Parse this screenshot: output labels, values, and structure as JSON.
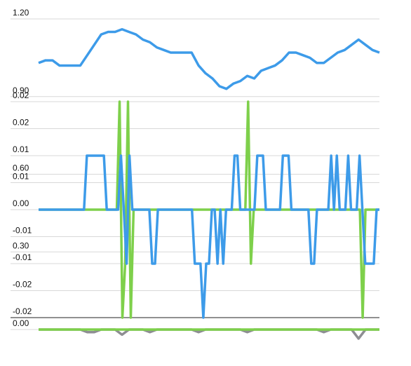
{
  "chart_data": [
    {
      "type": "line",
      "ylim": [
        0,
        1.2
      ],
      "yticks": [
        {
          "value": 1.2,
          "label": "1.20"
        },
        {
          "value": 0.9,
          "label": "0.90"
        },
        {
          "value": 0.6,
          "label": "0.60"
        },
        {
          "value": 0.3,
          "label": "0.30"
        },
        {
          "value": 0,
          "label": "0.00"
        }
      ],
      "grid": true,
      "series": [
        {
          "color": "#8e8e93",
          "values": [
            0,
            0,
            0,
            0,
            0,
            0,
            0,
            -0.01,
            -0.01,
            0,
            0,
            0,
            -0.02,
            0,
            0,
            0,
            -0.01,
            0,
            0,
            0,
            0,
            0,
            0,
            -0.01,
            0,
            0,
            0,
            0,
            0,
            0,
            -0.01,
            0,
            0,
            0,
            0,
            0,
            0,
            0,
            0,
            0,
            0,
            -0.01,
            0,
            0,
            0,
            0,
            -0.035,
            0,
            0,
            0
          ]
        },
        {
          "color": "#7ed04b",
          "values": [
            0,
            0,
            0,
            0,
            0,
            0,
            0,
            0,
            0,
            0,
            0,
            0,
            0,
            0,
            0,
            0,
            0,
            0,
            0,
            0,
            0,
            0,
            0,
            0,
            0,
            0,
            0,
            0,
            0,
            0,
            0,
            0,
            0,
            0,
            0,
            0,
            0,
            0,
            0,
            0,
            0,
            0,
            0,
            0,
            0,
            0,
            0,
            0,
            0,
            0
          ]
        },
        {
          "color": "#3d9be9",
          "values": [
            1.03,
            1.04,
            1.04,
            1.02,
            1.02,
            1.02,
            1.02,
            1.06,
            1.1,
            1.14,
            1.15,
            1.15,
            1.16,
            1.15,
            1.14,
            1.12,
            1.11,
            1.09,
            1.08,
            1.07,
            1.07,
            1.07,
            1.07,
            1.02,
            0.99,
            0.97,
            0.94,
            0.93,
            0.95,
            0.96,
            0.98,
            0.97,
            1.0,
            1.01,
            1.02,
            1.04,
            1.07,
            1.07,
            1.06,
            1.05,
            1.03,
            1.03,
            1.05,
            1.07,
            1.08,
            1.1,
            1.12,
            1.1,
            1.08,
            1.07
          ]
        }
      ]
    },
    {
      "type": "line",
      "ylim": [
        -0.02,
        0.02
      ],
      "yticks": [
        0.02,
        {
          "value": 0.015,
          "label": "0.02"
        },
        0.01,
        {
          "value": 0.005,
          "label": "0.01"
        },
        {
          "value": 0,
          "label": "0.00"
        },
        {
          "value": -0.005,
          "label": "-0.01"
        },
        -0.01,
        {
          "value": -0.015,
          "label": "-0.02"
        },
        -0.02
      ],
      "grid": true,
      "series": [
        {
          "color": "#7ed04b",
          "values": [
            0,
            0,
            0,
            0,
            0,
            0,
            0,
            0,
            0,
            0,
            0,
            0,
            0,
            0,
            0,
            0,
            0,
            0,
            0,
            0,
            0,
            0,
            0,
            0,
            0,
            0,
            0,
            0,
            0,
            0.02,
            -0.02,
            -0.01,
            0.02,
            -0.02,
            0,
            0,
            0,
            0,
            0,
            0,
            0,
            0,
            0,
            0,
            0,
            0,
            0,
            0,
            0,
            0,
            0,
            0,
            0,
            0,
            0,
            0,
            0,
            0,
            0,
            0,
            0,
            0,
            0,
            0,
            0,
            0,
            0,
            0,
            0,
            0,
            0,
            0,
            0,
            0,
            0,
            0.02,
            -0.01,
            0,
            0,
            0,
            0,
            0,
            0,
            0,
            0,
            0,
            0,
            0,
            0,
            0,
            0,
            0,
            0,
            0,
            0,
            0,
            0,
            0,
            0,
            0,
            0,
            0,
            0,
            0,
            0,
            0,
            0,
            0,
            0,
            0,
            0,
            0,
            0,
            0,
            0,
            0,
            -0.02,
            0,
            0,
            0,
            0,
            0,
            0
          ]
        },
        {
          "color": "#3d9be9",
          "values": [
            0,
            0,
            0,
            0,
            0,
            0,
            0,
            0,
            0,
            0,
            0,
            0,
            0,
            0,
            0,
            0,
            0,
            0.01,
            0.01,
            0.01,
            0.01,
            0.01,
            0.01,
            0.01,
            0,
            0,
            0,
            0,
            0,
            0.01,
            0,
            -0.01,
            0.01,
            0,
            0,
            0,
            0,
            0,
            0,
            0,
            -0.01,
            -0.01,
            0,
            0,
            0,
            0,
            0,
            0,
            0,
            0,
            0,
            0,
            0,
            0,
            0,
            -0.01,
            -0.01,
            -0.01,
            -0.02,
            -0.01,
            -0.01,
            0,
            0,
            -0.01,
            0,
            -0.01,
            0,
            0,
            0,
            0.01,
            0.01,
            0,
            0,
            0,
            0,
            0,
            0,
            0.01,
            0.01,
            0.01,
            0,
            0,
            0,
            0,
            0,
            0,
            0.01,
            0.01,
            0.01,
            0,
            0,
            0,
            0,
            0,
            0,
            0,
            -0.01,
            -0.01,
            0,
            0,
            0,
            0,
            0,
            0.01,
            0,
            0.01,
            0,
            0,
            0,
            0.01,
            0,
            0,
            0,
            0.01,
            0,
            -0.01,
            -0.01,
            -0.01,
            -0.01,
            0,
            0
          ]
        }
      ]
    }
  ]
}
